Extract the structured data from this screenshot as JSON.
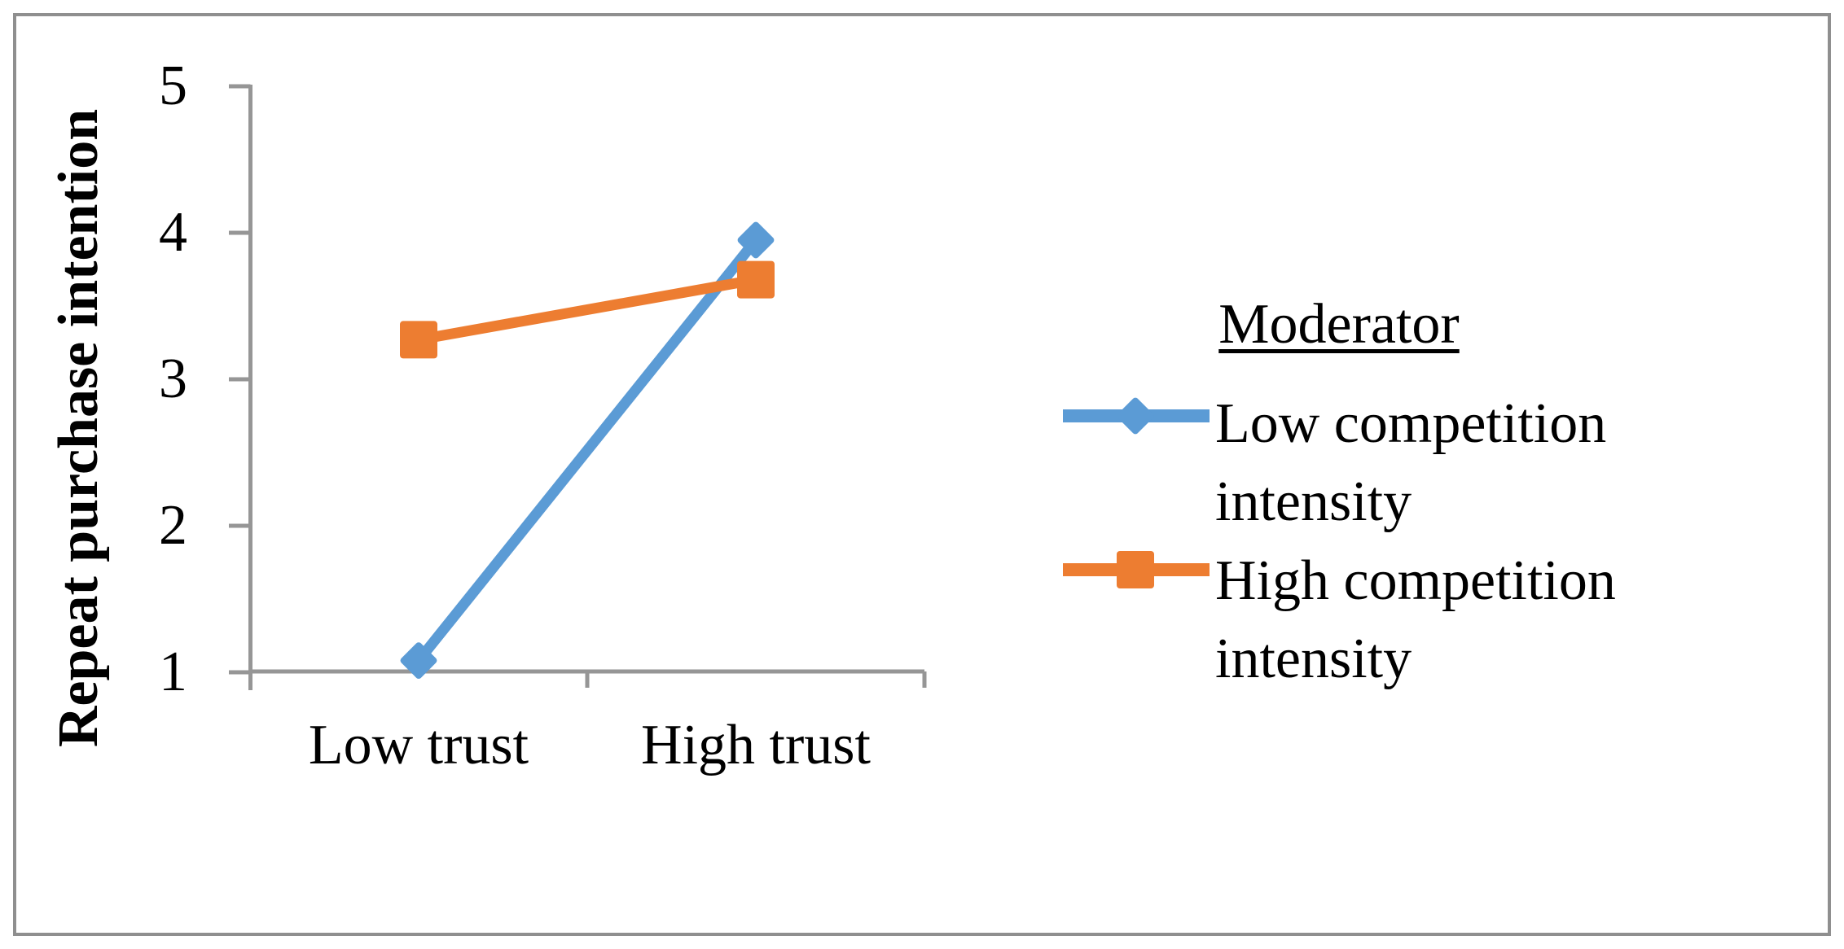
{
  "figure": {
    "background": "#FFFFFF",
    "border_color": "#8F8F8F"
  },
  "chart_data": {
    "type": "line",
    "title": "",
    "xlabel": "",
    "ylabel": "Repeat purchase intention",
    "categories": [
      "Low trust",
      "High trust"
    ],
    "y_ticks": [
      1,
      2,
      3,
      4,
      5
    ],
    "ylim": [
      1,
      5
    ],
    "grid": false,
    "axis_color": "#969696",
    "legend_position": "right",
    "legend_title": "Moderator",
    "series": [
      {
        "name": "Low competition intensity",
        "marker": "diamond",
        "color": "#5B9BD5",
        "values": [
          1.08,
          3.95
        ]
      },
      {
        "name": "High competition intensity",
        "marker": "square",
        "color": "#ED7D31",
        "values": [
          3.27,
          3.68
        ]
      }
    ]
  }
}
